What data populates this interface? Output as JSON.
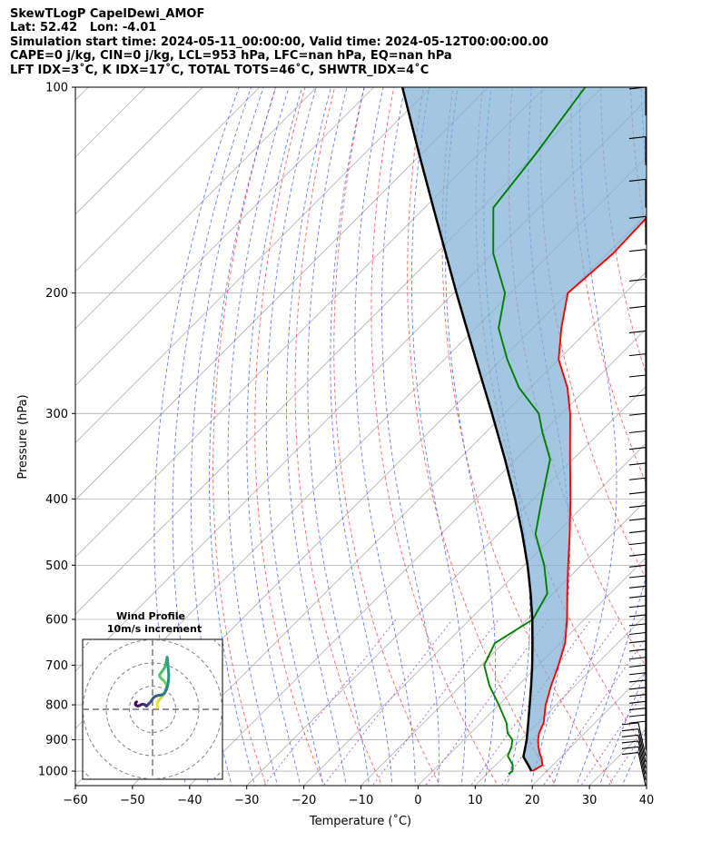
{
  "header": {
    "line1": "SkewTLogP CapelDewi_AMOF",
    "line2": "Lat: 52.42   Lon: -4.01",
    "line3": "Simulation start time: 2024-05-11_00:00:00, Valid time: 2024-05-12T00:00:00.00",
    "line4": "CAPE=0 j/kg, CIN=0 j/kg, LCL=953 hPa, LFC=nan hPa, EQ=nan hPa",
    "line5": "LFT IDX=3˚C, K IDX=17˚C, TOTAL TOTS=46˚C, SHWTR_IDX=4˚C"
  },
  "chart_data": {
    "type": "line",
    "xlabel": "Temperature (˚C)",
    "ylabel": "Pressure (hPa)",
    "xlim": [
      -60,
      40
    ],
    "ylim": [
      1050,
      100
    ],
    "yscale": "log",
    "skew": 45,
    "x_ticks": [
      -60,
      -50,
      -40,
      -30,
      -20,
      -10,
      0,
      10,
      20,
      30,
      40
    ],
    "y_ticks": [
      100,
      200,
      300,
      400,
      500,
      600,
      700,
      800,
      900,
      1000
    ],
    "grid": true,
    "series": [
      {
        "role": "temperature",
        "color": "#ff0000",
        "pressure": [
          1000,
          980,
          960,
          940,
          920,
          900,
          880,
          850,
          800,
          750,
          700,
          650,
          600,
          550,
          500,
          450,
          400,
          350,
          300,
          275,
          250,
          225,
          200,
          175,
          150,
          125,
          110,
          100
        ],
        "temperature": [
          17.5,
          18.2,
          17.0,
          15.5,
          14.2,
          13.0,
          12.0,
          11.0,
          8.2,
          5.8,
          3.5,
          0.8,
          -3.0,
          -7.5,
          -12.3,
          -17.5,
          -23.5,
          -30.5,
          -38.5,
          -43.5,
          -50.0,
          -55.0,
          -60.0,
          -59.0,
          -59.5,
          -60.5,
          -60.8,
          -61.0
        ]
      },
      {
        "role": "dewpoint",
        "color": "#008000",
        "pressure": [
          1010,
          1000,
          980,
          950,
          920,
          900,
          880,
          850,
          800,
          750,
          700,
          650,
          600,
          550,
          500,
          450,
          400,
          350,
          320,
          300,
          275,
          250,
          225,
          200,
          175,
          150,
          125,
          100
        ],
        "temperature": [
          13.8,
          14.0,
          13.0,
          10.5,
          9.5,
          8.5,
          6.5,
          4.5,
          0.0,
          -5.0,
          -9.5,
          -11.5,
          -9.0,
          -11.0,
          -16.5,
          -23.5,
          -28.5,
          -34.0,
          -40.0,
          -44.0,
          -52.0,
          -59.0,
          -66.0,
          -71.0,
          -80.0,
          -88.0,
          -90.0,
          -93.0
        ]
      },
      {
        "role": "parcel",
        "color": "#000000",
        "pressure": [
          1000,
          980,
          953,
          900,
          850,
          800,
          750,
          700,
          650,
          600,
          550,
          500,
          450,
          400,
          350,
          300,
          250,
          200,
          150,
          125,
          100
        ],
        "temperature": [
          17.3,
          15.7,
          13.4,
          11.0,
          8.3,
          5.4,
          2.3,
          -1.1,
          -4.9,
          -9.1,
          -13.9,
          -19.4,
          -25.8,
          -33.2,
          -41.9,
          -52.2,
          -64.5,
          -79.5,
          -98.5,
          -110.5,
          -125.0
        ]
      }
    ],
    "wind_barbs": {
      "color": "#000000",
      "levels_hPa": [
        1050,
        1030,
        1010,
        990,
        970,
        950,
        930,
        910,
        890,
        870,
        850,
        830,
        810,
        790,
        770,
        750,
        730,
        710,
        690,
        670,
        650,
        630,
        610,
        590,
        570,
        550,
        530,
        510,
        490,
        470,
        450,
        430,
        410,
        390,
        370,
        350,
        330,
        310,
        290,
        270,
        250,
        230,
        210,
        190,
        170,
        150,
        130,
        110
      ]
    },
    "hodograph": {
      "title": "Wind Profile",
      "subtitle": "10m/s increment",
      "ring_increment_ms": 10,
      "u": [
        2.0,
        2.2,
        2.0,
        2.1,
        2.6,
        3.2,
        4.0,
        4.8,
        5.4,
        5.8,
        6.0,
        6.0,
        5.6,
        4.8,
        3.9,
        3.2,
        3.0,
        3.5,
        4.2,
        5.0,
        5.4,
        5.7,
        5.9,
        6.1,
        6.3,
        6.4,
        6.6,
        6.8,
        7.0,
        6.9,
        6.6,
        6.2,
        5.9,
        5.6,
        5.3,
        4.9,
        4.4,
        3.8,
        3.1,
        2.4,
        1.7,
        1.0,
        0.4,
        -0.1,
        -0.6,
        -1.2,
        -1.9,
        -2.4,
        -2.7,
        -3.0,
        -3.4,
        -4.0,
        -4.7,
        -5.5,
        -6.3,
        -6.9,
        -7.4,
        -7.3,
        -6.9
      ],
      "v": [
        0.8,
        1.5,
        2.3,
        3.0,
        3.8,
        4.6,
        5.4,
        6.4,
        7.4,
        8.4,
        9.4,
        10.4,
        11.4,
        12.4,
        13.2,
        14.0,
        14.8,
        15.6,
        16.5,
        17.6,
        18.4,
        19.6,
        20.4,
        21.4,
        22.5,
        22.0,
        19.6,
        17.2,
        14.8,
        12.6,
        10.6,
        9.2,
        8.4,
        7.8,
        7.2,
        6.8,
        6.4,
        6.2,
        6.1,
        6.0,
        5.8,
        5.5,
        5.0,
        4.3,
        3.6,
        2.8,
        2.1,
        1.6,
        1.4,
        1.7,
        2.0,
        2.2,
        2.1,
        1.7,
        1.4,
        1.6,
        2.1,
        2.8,
        3.2
      ]
    }
  }
}
